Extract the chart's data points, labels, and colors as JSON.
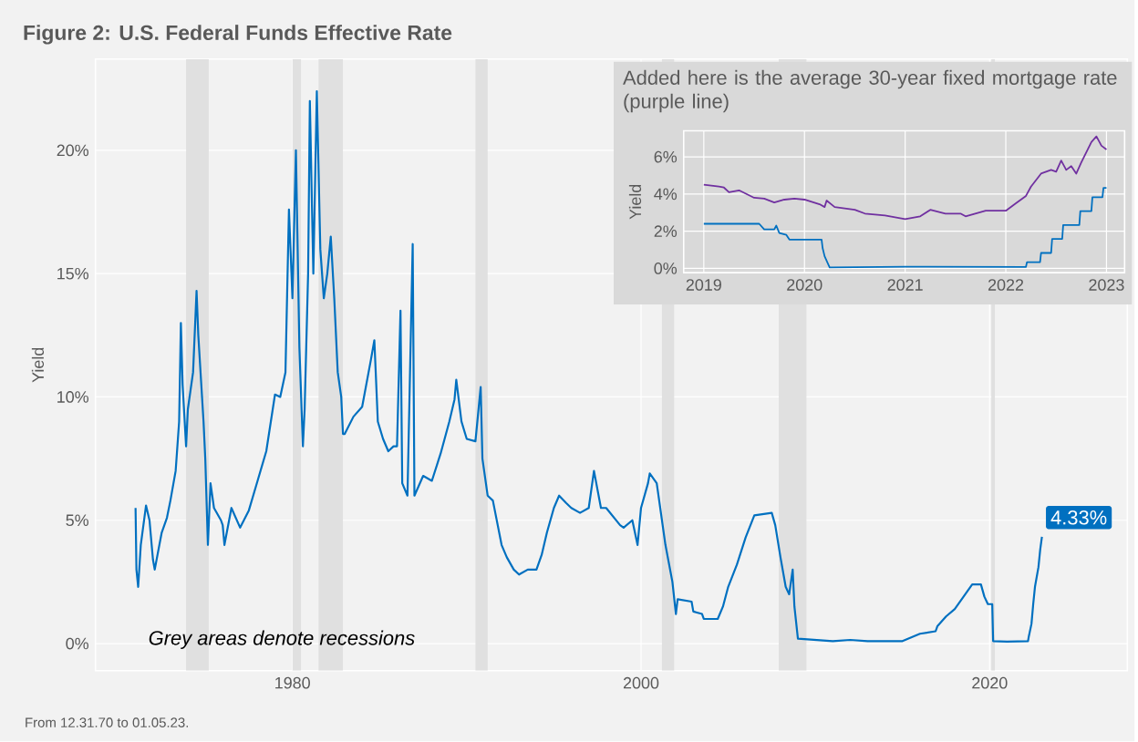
{
  "chart_data": [
    {
      "type": "line",
      "title": "Figure 2: U.S. Federal Funds Effective Rate",
      "ylabel": "Yield",
      "xlim": [
        1968.7,
        2027.9
      ],
      "ylim": [
        -1.1,
        23.7
      ],
      "xticks": [
        1980,
        2000,
        2020
      ],
      "yticks": [
        {
          "value": 0,
          "label": "0%"
        },
        {
          "value": 5,
          "label": "5%"
        },
        {
          "value": 10,
          "label": "10%"
        },
        {
          "value": 15,
          "label": "15%"
        },
        {
          "value": 20,
          "label": "20%"
        }
      ],
      "grid": true,
      "bands": [
        {
          "axis": "x",
          "from": 1973.9,
          "to": 1975.2,
          "color": "#e0e0e0"
        },
        {
          "axis": "x",
          "from": 1980.0,
          "to": 1980.5,
          "color": "#e0e0e0"
        },
        {
          "axis": "x",
          "from": 1981.5,
          "to": 1982.9,
          "color": "#e0e0e0"
        },
        {
          "axis": "x",
          "from": 1990.5,
          "to": 1991.2,
          "color": "#e0e0e0"
        },
        {
          "axis": "x",
          "from": 2001.2,
          "to": 2001.9,
          "color": "#e0e0e0"
        },
        {
          "axis": "x",
          "from": 2007.9,
          "to": 2009.5,
          "color": "#e0e0e0"
        },
        {
          "axis": "x",
          "from": 2020.1,
          "to": 2020.3,
          "color": "#e0e0e0"
        }
      ],
      "annotations": [
        "*Grey areas denote recessions*",
        {
          "text": "4.33%",
          "x": 2023.0,
          "y": 4.33
        },
        "From 12.31.70 to 01.05.23."
      ],
      "series": [
        {
          "color": "#0070c0",
          "x": [
            1971.0,
            1971.05,
            1971.15,
            1971.3,
            1971.6,
            1971.8,
            1972.0,
            1972.1,
            1972.5,
            1972.8,
            1973.0,
            1973.3,
            1973.5,
            1973.6,
            1973.7,
            1973.9,
            1974.0,
            1974.3,
            1974.5,
            1974.6,
            1974.9,
            1975.0,
            1975.15,
            1975.3,
            1975.5,
            1975.9,
            1976.0,
            1976.1,
            1976.5,
            1977.0,
            1977.5,
            1978.0,
            1978.5,
            1979.0,
            1979.3,
            1979.6,
            1979.8,
            1980.0,
            1980.2,
            1980.4,
            1980.6,
            1980.7,
            1980.9,
            1981.0,
            1981.2,
            1981.4,
            1981.6,
            1981.8,
            1982.0,
            1982.2,
            1982.4,
            1982.6,
            1982.8,
            1982.9,
            1983.0,
            1983.5,
            1984.0,
            1984.5,
            1984.7,
            1984.9,
            1985.2,
            1985.5,
            1985.8,
            1986.0,
            1986.2,
            1986.3,
            1986.6,
            1986.9,
            1987.0,
            1987.5,
            1988.0,
            1988.5,
            1989.0,
            1989.3,
            1989.4,
            1989.7,
            1990.0,
            1990.5,
            1990.8,
            1990.9,
            1991.2,
            1991.5,
            1992.0,
            1992.3,
            1992.7,
            1993.0,
            1993.5,
            1994.0,
            1994.3,
            1994.6,
            1995.0,
            1995.3,
            1995.7,
            1996.0,
            1996.5,
            1997.0,
            1997.3,
            1997.7,
            1998.0,
            1998.8,
            1999.0,
            1999.5,
            1999.8,
            2000.0,
            2000.4,
            2000.5,
            2000.9,
            2001.0,
            2001.4,
            2001.8,
            2002.0,
            2002.1,
            2002.9,
            2003.0,
            2003.5,
            2003.6,
            2004.4,
            2004.7,
            2005.0,
            2005.5,
            2006.0,
            2006.5,
            2007.5,
            2007.7,
            2008.0,
            2008.3,
            2008.5,
            2008.7,
            2008.8,
            2009.0,
            2010.0,
            2011.0,
            2012.0,
            2013.0,
            2014.0,
            2015.0,
            2016.0,
            2016.9,
            2017.0,
            2017.5,
            2018.0,
            2018.5,
            2019.0,
            2019.5,
            2019.7,
            2019.9,
            2020.15,
            2020.2,
            2021.0,
            2022.2,
            2022.25,
            2022.4,
            2022.5,
            2022.6,
            2022.8,
            2022.9,
            2023.0
          ],
          "values": [
            5.5,
            3.0,
            2.3,
            4.0,
            5.6,
            5.0,
            3.4,
            3.0,
            4.5,
            5.1,
            5.8,
            7.0,
            9.0,
            13.0,
            10.5,
            8.0,
            9.5,
            11.0,
            14.3,
            12.5,
            9.0,
            7.5,
            4.0,
            6.5,
            5.5,
            5.0,
            4.8,
            4.0,
            5.5,
            4.7,
            5.4,
            6.6,
            7.8,
            10.1,
            10.0,
            11.0,
            17.6,
            14.0,
            20.0,
            12.0,
            8.0,
            9.5,
            15.0,
            22.0,
            15.0,
            22.4,
            16.0,
            14.0,
            15.0,
            16.5,
            14.0,
            11.0,
            10.0,
            8.5,
            8.5,
            9.2,
            9.6,
            11.5,
            12.3,
            9.0,
            8.3,
            7.8,
            8.0,
            8.0,
            13.5,
            6.5,
            6.0,
            16.2,
            6.0,
            6.8,
            6.6,
            7.7,
            9.0,
            9.9,
            10.7,
            9.0,
            8.3,
            8.2,
            10.4,
            7.5,
            6.0,
            5.8,
            4.0,
            3.5,
            3.0,
            2.8,
            3.0,
            3.0,
            3.6,
            4.5,
            5.5,
            6.0,
            5.7,
            5.5,
            5.3,
            5.5,
            7.0,
            5.5,
            5.5,
            4.8,
            4.7,
            5.0,
            4.0,
            5.5,
            6.5,
            6.9,
            6.5,
            6.0,
            4.0,
            2.5,
            1.2,
            1.8,
            1.7,
            1.3,
            1.2,
            1.0,
            1.0,
            1.5,
            2.3,
            3.2,
            4.3,
            5.2,
            5.3,
            4.8,
            3.5,
            2.3,
            2.0,
            3.0,
            1.5,
            0.2,
            0.15,
            0.1,
            0.15,
            0.1,
            0.1,
            0.1,
            0.4,
            0.5,
            0.7,
            1.1,
            1.4,
            1.9,
            2.4,
            2.4,
            1.9,
            1.6,
            1.6,
            0.1,
            0.08,
            0.1,
            0.3,
            0.8,
            1.6,
            2.3,
            3.1,
            3.8,
            4.33
          ]
        }
      ]
    },
    {
      "type": "line",
      "title": "Added here is the average 30-year fixed mortgage rate (purple line)",
      "ylabel": "Yield",
      "xlim": [
        2018.8,
        2023.18
      ],
      "ylim": [
        -0.23,
        7.4
      ],
      "xticks": [
        2019,
        2020,
        2021,
        2022,
        2023
      ],
      "yticks": [
        {
          "value": 0,
          "label": "0%"
        },
        {
          "value": 2,
          "label": "2%"
        },
        {
          "value": 4,
          "label": "4%"
        },
        {
          "value": 6,
          "label": "6%"
        }
      ],
      "grid": true,
      "series": [
        {
          "color": "#7030a0",
          "x": [
            2019.0,
            2019.15,
            2019.2,
            2019.25,
            2019.35,
            2019.5,
            2019.6,
            2019.7,
            2019.8,
            2019.9,
            2020.0,
            2020.15,
            2020.2,
            2020.22,
            2020.3,
            2020.5,
            2020.6,
            2020.8,
            2021.0,
            2021.15,
            2021.25,
            2021.4,
            2021.55,
            2021.6,
            2021.8,
            2022.0,
            2022.1,
            2022.2,
            2022.25,
            2022.35,
            2022.45,
            2022.5,
            2022.55,
            2022.6,
            2022.65,
            2022.7,
            2022.75,
            2022.85,
            2022.9,
            2022.95,
            2023.0
          ],
          "values": [
            4.5,
            4.4,
            4.35,
            4.1,
            4.2,
            3.8,
            3.75,
            3.55,
            3.7,
            3.75,
            3.7,
            3.45,
            3.3,
            3.65,
            3.3,
            3.15,
            2.95,
            2.85,
            2.65,
            2.8,
            3.15,
            2.95,
            2.95,
            2.8,
            3.1,
            3.1,
            3.5,
            3.9,
            4.4,
            5.1,
            5.3,
            5.2,
            5.8,
            5.3,
            5.5,
            5.1,
            5.7,
            6.8,
            7.1,
            6.6,
            6.4
          ]
        },
        {
          "color": "#0070c0",
          "x": [
            2019.0,
            2019.55,
            2019.6,
            2019.7,
            2019.72,
            2019.75,
            2019.82,
            2019.85,
            2020.17,
            2020.18,
            2020.2,
            2020.25,
            2021.0,
            2022.2,
            2022.21,
            2022.34,
            2022.35,
            2022.45,
            2022.46,
            2022.56,
            2022.57,
            2022.73,
            2022.74,
            2022.85,
            2022.86,
            2022.96,
            2022.97,
            2023.0
          ],
          "values": [
            2.4,
            2.4,
            2.1,
            2.1,
            2.3,
            1.9,
            1.8,
            1.55,
            1.55,
            1.1,
            0.65,
            0.05,
            0.09,
            0.08,
            0.33,
            0.33,
            0.83,
            0.83,
            1.58,
            1.58,
            2.33,
            2.33,
            3.08,
            3.08,
            3.83,
            3.83,
            4.33,
            4.33
          ]
        }
      ]
    }
  ]
}
